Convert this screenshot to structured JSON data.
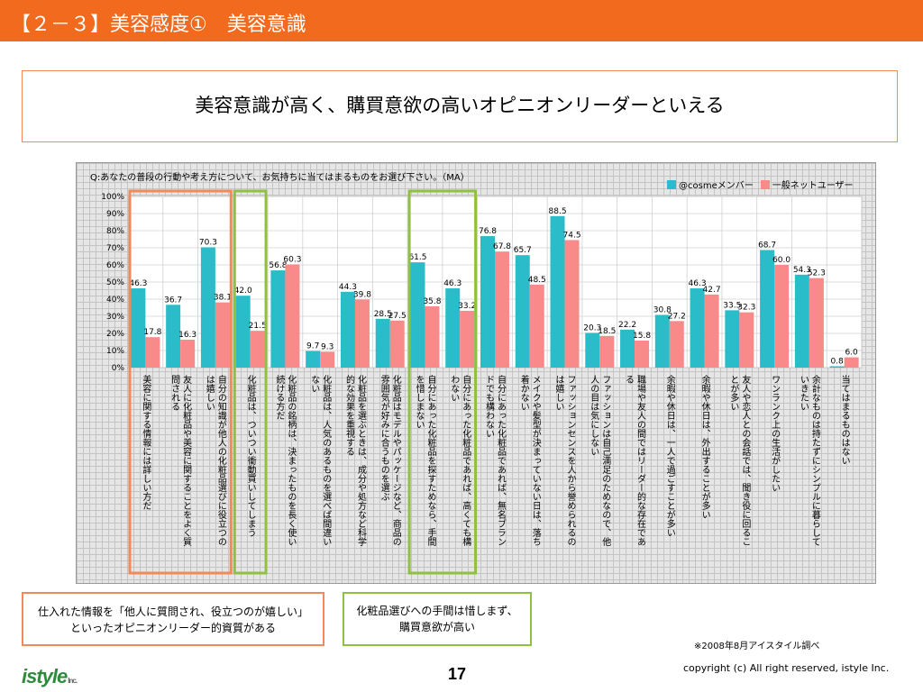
{
  "header": {
    "title": "【２－３】美容感度①　美容意識"
  },
  "headline": "美容意識が高く、購買意欲の高いオピニオンリーダーといえる",
  "question": "Q:あなたの普段の行動や考え方について、お気持ちに当てはまるものをお選び下さい。（MA）",
  "notes": {
    "note1_line1": "仕入れた情報を「他人に質問され、役立つのが嬉しい」",
    "note1_line2": "といったオピニオンリーダー的資質がある",
    "note2_line1": "化粧品選びへの手間は惜しまず、",
    "note2_line2": "購買意欲が高い"
  },
  "source": "※2008年8月アイスタイル調べ",
  "footer": {
    "logo": "istyle",
    "logo_suffix": "Inc.",
    "page_number": "17",
    "copyright": "copyright (c) All right reserved, istyle Inc."
  },
  "colors": {
    "header": "#F26A1E",
    "cosme": "#2ABCC8",
    "general": "#F98A8A",
    "highlight_orange": "#F08A5A",
    "highlight_green": "#90C040"
  },
  "chart_data": {
    "type": "bar",
    "ylim": [
      0,
      100
    ],
    "ytick_labels": [
      "0%",
      "10%",
      "20%",
      "30%",
      "40%",
      "50%",
      "60%",
      "70%",
      "80%",
      "90%",
      "100%"
    ],
    "legend_position": "top-right",
    "grid": true,
    "categories": [
      "美容に関する情報には詳しい方だ",
      "友人に化粧品や美容に関することをよく質問される",
      "自分の知識が他人の化粧品選びに役立つのは嬉しい",
      "化粧品は、ついつい衝動買いしてしまう",
      "化粧品の銘柄は、決まったものを長く使い続ける方だ",
      "化粧品は、人気のあるものを選べば間違いない",
      "化粧品を選ぶときは、成分や処方など科学的な効果を重視する",
      "化粧品はモデルやパッケージなど、商品の雰囲気が好みに合うものを選ぶ",
      "自分にあった化粧品を探すためなら、手間を惜しまない",
      "自分にあった化粧品であれば、高くても構わない",
      "自分にあった化粧品であれば、無名ブランドでも構わない",
      "メイクや髪型が決まっていない日は、落ち着かない",
      "ファッションセンスを人から誉められるのは嬉しい",
      "ファッションは自己満足のためなので、他人の目は気にしない",
      "職場や友人の間ではリーダー的な存在である",
      "余暇や休日は、一人で過ごすことが多い",
      "余暇や休日は、外出することが多い",
      "友人や恋人との会話では、聞き役に回ることが多い",
      "ワンランク上の生活がしたい",
      "余計なものは持たずにシンプルに暮らしていきたい",
      "当てはまるものはない"
    ],
    "series": [
      {
        "name": "@cosmeメンバー",
        "color": "#2ABCC8",
        "values": [
          46.3,
          36.7,
          70.3,
          42.0,
          56.8,
          9.7,
          44.3,
          28.5,
          61.5,
          46.3,
          76.8,
          65.7,
          88.5,
          20.3,
          22.2,
          30.8,
          46.3,
          33.5,
          68.7,
          54.3,
          0.8
        ]
      },
      {
        "name": "一般ネットユーザー",
        "color": "#F98A8A",
        "values": [
          17.8,
          16.3,
          38.1,
          21.5,
          60.3,
          9.3,
          39.8,
          27.5,
          35.8,
          33.2,
          67.8,
          48.5,
          74.5,
          18.5,
          15.8,
          27.2,
          42.7,
          32.3,
          60.0,
          52.3,
          6.0
        ]
      }
    ],
    "highlight_groups": [
      {
        "color": "orange",
        "categories": [
          0,
          1,
          2
        ]
      },
      {
        "color": "green",
        "categories": [
          3
        ]
      },
      {
        "color": "green",
        "categories": [
          8,
          9
        ]
      }
    ]
  }
}
